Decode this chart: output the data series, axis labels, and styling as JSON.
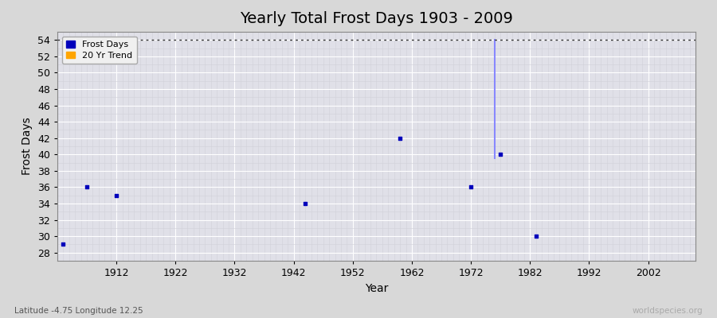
{
  "title": "Yearly Total Frost Days 1903 - 2009",
  "xlabel": "Year",
  "ylabel": "Frost Days",
  "xlim": [
    1902,
    2010
  ],
  "ylim": [
    27,
    55
  ],
  "yticks": [
    28,
    30,
    32,
    34,
    36,
    38,
    40,
    42,
    44,
    46,
    48,
    50,
    52,
    54
  ],
  "xticks": [
    1912,
    1922,
    1932,
    1942,
    1952,
    1962,
    1972,
    1982,
    1992,
    2002
  ],
  "frost_days_x": [
    1903,
    1907,
    1912,
    1944,
    1960,
    1972,
    1977,
    1983
  ],
  "frost_days_y": [
    29,
    36,
    35,
    34,
    42,
    36,
    40,
    30
  ],
  "trend_line_x": [
    1976,
    1976
  ],
  "trend_line_y": [
    54,
    39.5
  ],
  "dotted_line_y": 54,
  "scatter_color": "#0000bb",
  "trend_color": "#8888ff",
  "dotted_color": "#333333",
  "bg_color": "#d8d8d8",
  "plot_bg_color": "#e0e0e8",
  "grid_major_color": "#ffffff",
  "grid_minor_color": "#d0d0d8",
  "subtitle": "Latitude -4.75 Longitude 12.25",
  "watermark": "worldspecies.org",
  "title_fontsize": 14,
  "axis_fontsize": 9,
  "label_fontsize": 10
}
